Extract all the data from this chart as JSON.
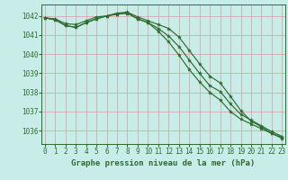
{
  "title": "Graphe pression niveau de la mer (hPa)",
  "bg_color": "#c8ede8",
  "plot_bg_color": "#c8ede8",
  "grid_color": "#d8a8a8",
  "line_color": "#2d6b2d",
  "ylim": [
    1035.3,
    1042.6
  ],
  "xlim": [
    -0.3,
    23.3
  ],
  "yticks": [
    1036,
    1037,
    1038,
    1039,
    1040,
    1041,
    1042
  ],
  "xticks": [
    0,
    1,
    2,
    3,
    4,
    5,
    6,
    7,
    8,
    9,
    10,
    11,
    12,
    13,
    14,
    15,
    16,
    17,
    18,
    19,
    20,
    21,
    22,
    23
  ],
  "series": [
    [
      1041.9,
      1041.85,
      1041.6,
      1041.55,
      1041.75,
      1041.95,
      1042.0,
      1042.15,
      1042.2,
      1041.95,
      1041.75,
      1041.55,
      1041.35,
      1040.9,
      1040.2,
      1039.5,
      1038.85,
      1038.5,
      1037.8,
      1037.05,
      1036.5,
      1036.2,
      1035.85,
      1035.6
    ],
    [
      1041.9,
      1041.8,
      1041.5,
      1041.4,
      1041.65,
      1041.85,
      1042.0,
      1042.1,
      1042.15,
      1041.85,
      1041.65,
      1041.35,
      1040.95,
      1040.4,
      1039.7,
      1039.0,
      1038.35,
      1038.05,
      1037.4,
      1036.85,
      1036.55,
      1036.25,
      1035.95,
      1035.7
    ],
    [
      1041.9,
      1041.8,
      1041.5,
      1041.4,
      1041.65,
      1041.85,
      1042.0,
      1042.1,
      1042.15,
      1041.85,
      1041.65,
      1041.2,
      1040.65,
      1039.95,
      1039.2,
      1038.55,
      1038.0,
      1037.6,
      1037.0,
      1036.6,
      1036.35,
      1036.1,
      1035.85,
      1035.65
    ]
  ],
  "title_fontsize": 6.5,
  "tick_fontsize": 5.5,
  "xtick_fontsize": 5.0
}
